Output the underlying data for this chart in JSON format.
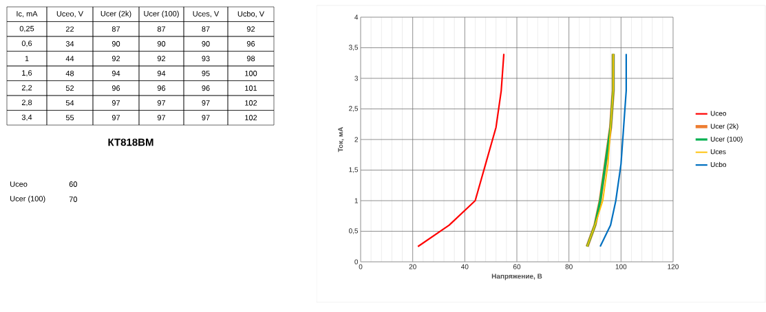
{
  "chart_data": {
    "type": "line",
    "xlabel": "Напряжение, В",
    "ylabel": "Ток, мА",
    "series": [
      {
        "name": "Uceo",
        "color": "#ff0000",
        "x": [
          22,
          34,
          44,
          48,
          52,
          54,
          55
        ],
        "values": [
          0.25,
          0.6,
          1,
          1.6,
          2.2,
          2.8,
          3.4
        ]
      },
      {
        "name": "Ucer (2k)",
        "color": "#ed7d31",
        "x": [
          87,
          90,
          92,
          94,
          96,
          97,
          97
        ],
        "values": [
          0.25,
          0.6,
          1,
          1.6,
          2.2,
          2.8,
          3.4
        ]
      },
      {
        "name": "Ucer (100)",
        "color": "#00b050",
        "x": [
          87,
          90,
          92,
          94,
          96,
          97,
          97
        ],
        "values": [
          0.25,
          0.6,
          1,
          1.6,
          2.2,
          2.8,
          3.4
        ]
      },
      {
        "name": "Uces",
        "color": "#ffc000",
        "x": [
          87,
          90,
          93,
          95,
          96,
          97,
          97
        ],
        "values": [
          0.25,
          0.6,
          1,
          1.6,
          2.2,
          2.8,
          3.4
        ]
      },
      {
        "name": "Ucbo",
        "color": "#0070c0",
        "x": [
          92,
          96,
          98,
          100,
          101,
          102,
          102
        ],
        "values": [
          0.25,
          0.6,
          1,
          1.6,
          2.2,
          2.8,
          3.4
        ]
      }
    ],
    "xlim": [
      0,
      120
    ],
    "xticks": [
      0,
      20,
      40,
      60,
      80,
      100,
      120
    ],
    "ylim": [
      0,
      4
    ],
    "yticks": [
      0,
      {
        "value": 0.5,
        "label": "0,5"
      },
      1,
      {
        "value": 1.5,
        "label": "1,5"
      },
      2,
      {
        "value": 2.5,
        "label": "2,5"
      },
      3,
      {
        "value": 3.5,
        "label": "3,5"
      },
      4
    ],
    "grid": true,
    "legend": "right",
    "marker": "none",
    "line_style": "solid",
    "annotations": [
      "Ic, mA",
      "Uceo, V",
      "Ucer (2k)",
      "Ucer (100)",
      "Uces, V",
      "Ucbo, V",
      "0,25",
      "22",
      "87",
      "87",
      "87",
      "92",
      "0,6",
      "34",
      "90",
      "90",
      "90",
      "96",
      "1",
      "44",
      "92",
      "92",
      "93",
      "98",
      "1,6",
      "48",
      "94",
      "94",
      "95",
      "100",
      "2,2",
      "52",
      "96",
      "96",
      "96",
      "101",
      "2,8",
      "54",
      "97",
      "97",
      "97",
      "102",
      "3,4",
      "55",
      "97",
      "97",
      "97",
      "102",
      "КТ818ВМ",
      "Uceo",
      "60",
      "Ucer (100)",
      "70"
    ]
  }
}
